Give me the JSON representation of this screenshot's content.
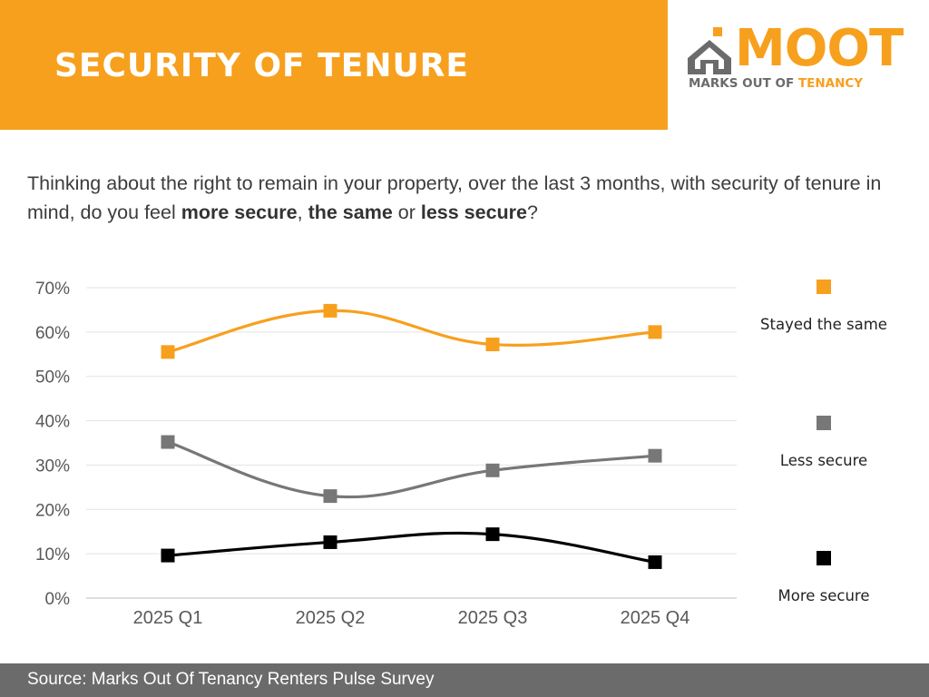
{
  "header": {
    "title": "SECURITY OF TENURE",
    "brand_color": "#F7A01E"
  },
  "logo": {
    "word": "MOOT",
    "tagline_prefix": "MARKS OUT OF",
    "tagline_accent": "TENANCY",
    "icon": "house-icon"
  },
  "question": {
    "part1": "Thinking about the right to remain in your property, over the last 3 months, with security of tenure in mind, do you feel ",
    "bold1": "more secure",
    "sep1": ", ",
    "bold2": "the same",
    "sep2": " or ",
    "bold3": "less secure",
    "end": "?"
  },
  "chart_data": {
    "type": "line",
    "title": "",
    "xlabel": "",
    "ylabel": "",
    "categories": [
      "2025 Q1",
      "2025 Q2",
      "2025 Q3",
      "2025 Q4"
    ],
    "y_ticks": [
      "0%",
      "10%",
      "20%",
      "30%",
      "40%",
      "50%",
      "60%",
      "70%"
    ],
    "ylim": [
      0,
      70
    ],
    "grid": true,
    "legend_position": "right",
    "series": [
      {
        "name": "Stayed the same",
        "color": "#F7A01E",
        "values": [
          55.5,
          64.8,
          57.2,
          60.0
        ]
      },
      {
        "name": "Less secure",
        "color": "#777777",
        "values": [
          35.2,
          23.0,
          28.8,
          32.1
        ]
      },
      {
        "name": "More secure",
        "color": "#000000",
        "values": [
          9.6,
          12.6,
          14.4,
          8.1
        ]
      }
    ]
  },
  "footer": {
    "source": "Source: Marks Out Of Tenancy Renters Pulse Survey"
  }
}
